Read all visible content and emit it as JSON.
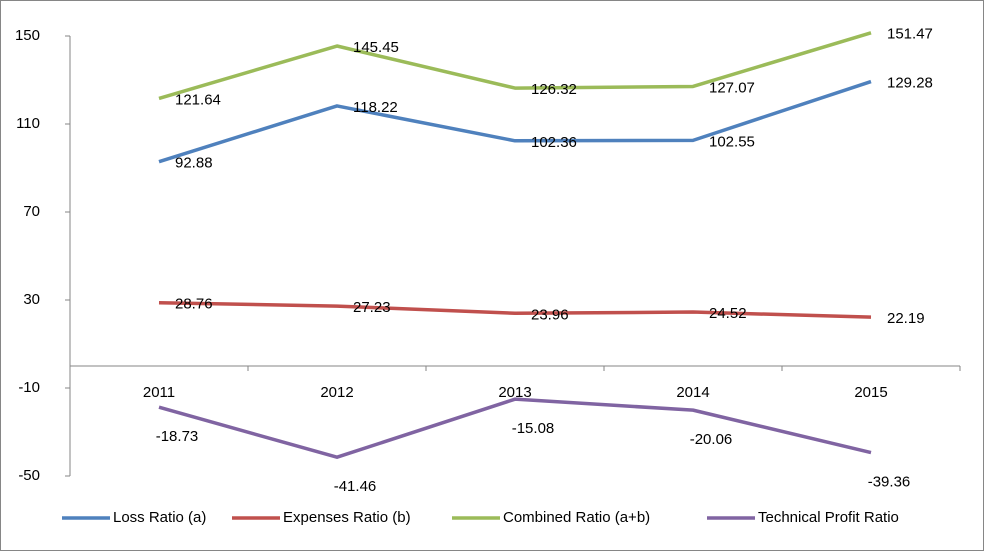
{
  "chart_data": {
    "type": "line",
    "categories": [
      "2011",
      "2012",
      "2013",
      "2014",
      "2015"
    ],
    "series": [
      {
        "name": "Loss Ratio (a)",
        "color": "#4f81bd",
        "values": [
          92.88,
          118.22,
          102.36,
          102.55,
          129.28
        ]
      },
      {
        "name": "Expenses Ratio (b)",
        "color": "#c0504d",
        "values": [
          28.76,
          27.23,
          23.96,
          24.52,
          22.19
        ]
      },
      {
        "name": "Combined Ratio (a+b)",
        "color": "#9bbb59",
        "values": [
          121.64,
          145.45,
          126.32,
          127.07,
          151.47
        ]
      },
      {
        "name": "Technical Profit Ratio",
        "color": "#8064a2",
        "values": [
          -18.73,
          -41.46,
          -15.08,
          -20.06,
          -39.36
        ]
      }
    ],
    "ylim": [
      -50,
      150
    ],
    "yticks": [
      -50,
      -10,
      30,
      70,
      110,
      150
    ],
    "grid": false,
    "legend": "bottom",
    "data_labels": true
  }
}
